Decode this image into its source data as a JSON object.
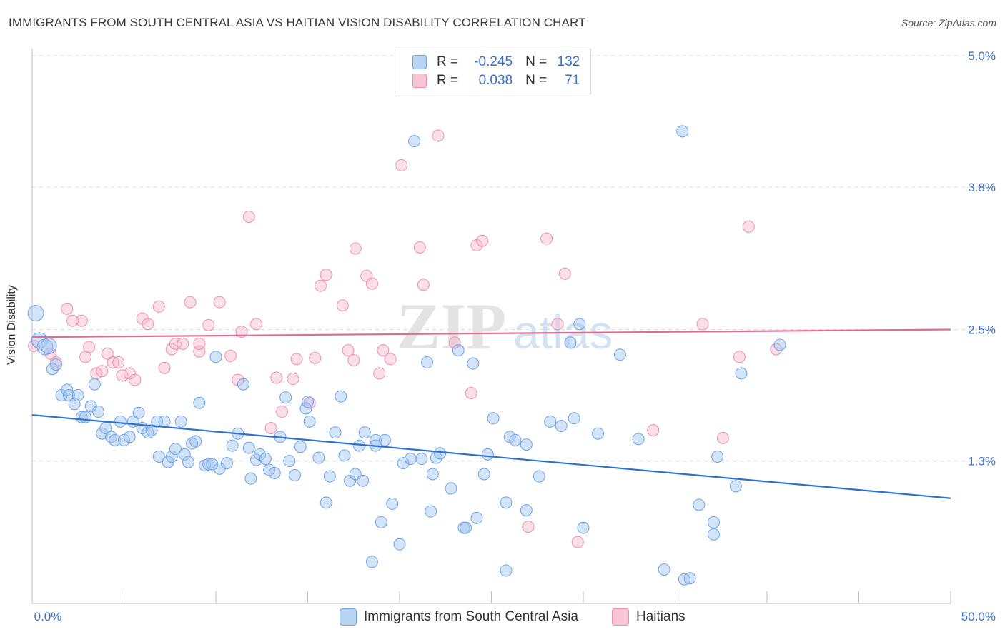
{
  "header": {
    "title": "IMMIGRANTS FROM SOUTH CENTRAL ASIA VS HAITIAN VISION DISABILITY CORRELATION CHART",
    "source": "Source: ZipAtlas.com"
  },
  "legend": {
    "r_label": "R =",
    "n_label": "N =",
    "series": [
      {
        "name": "Immigrants from South Central Asia",
        "r": "-0.245",
        "n": "132",
        "color": "#6ea3e6",
        "fill": "#b9d3f3",
        "line": "#2e6fd0"
      },
      {
        "name": "Haitians",
        "r": "0.038",
        "n": "71",
        "color": "#ee8fae",
        "fill": "#f8c6d5",
        "line": "#e36a92"
      }
    ]
  },
  "watermark": "ZIPatlas",
  "chart_data": {
    "type": "scatter",
    "xlabel": "",
    "ylabel": "Vision Disability",
    "xlim": [
      0,
      50
    ],
    "ylim": [
      0,
      5.0
    ],
    "x_tick_labels": [
      "0.0%",
      "50.0%"
    ],
    "y_ticks": [
      1.3,
      2.5,
      3.8,
      5.0
    ],
    "y_tick_labels": [
      "1.3%",
      "2.5%",
      "3.8%",
      "5.0%"
    ],
    "grid": "horizontal dashed",
    "legend_placement": "top-center and bottom",
    "series": [
      {
        "name": "Immigrants from South Central Asia",
        "trend": {
          "x": [
            0,
            50
          ],
          "y": [
            1.72,
            0.96
          ]
        },
        "points": [
          [
            0.2,
            2.65
          ],
          [
            0.4,
            2.4
          ],
          [
            0.7,
            2.34
          ],
          [
            0.9,
            2.35
          ],
          [
            1.1,
            2.14
          ],
          [
            1.3,
            2.18
          ],
          [
            1.6,
            1.9
          ],
          [
            1.9,
            1.95
          ],
          [
            2.0,
            1.9
          ],
          [
            2.3,
            1.82
          ],
          [
            2.5,
            1.9
          ],
          [
            2.7,
            1.7
          ],
          [
            2.9,
            1.7
          ],
          [
            3.2,
            1.8
          ],
          [
            3.4,
            2.0
          ],
          [
            3.6,
            1.75
          ],
          [
            3.8,
            1.55
          ],
          [
            4.0,
            1.6
          ],
          [
            4.3,
            1.52
          ],
          [
            4.5,
            1.49
          ],
          [
            4.8,
            1.66
          ],
          [
            5.0,
            1.49
          ],
          [
            5.3,
            1.52
          ],
          [
            5.5,
            1.66
          ],
          [
            5.8,
            1.74
          ],
          [
            6.0,
            1.6
          ],
          [
            6.3,
            1.56
          ],
          [
            6.5,
            1.58
          ],
          [
            6.8,
            1.66
          ],
          [
            6.9,
            1.34
          ],
          [
            7.2,
            1.66
          ],
          [
            7.4,
            1.29
          ],
          [
            7.6,
            1.34
          ],
          [
            7.8,
            1.41
          ],
          [
            8.1,
            1.66
          ],
          [
            8.3,
            1.36
          ],
          [
            8.5,
            1.29
          ],
          [
            8.7,
            1.46
          ],
          [
            8.9,
            1.48
          ],
          [
            9.1,
            1.83
          ],
          [
            9.4,
            1.26
          ],
          [
            9.6,
            1.27
          ],
          [
            9.8,
            1.27
          ],
          [
            10.0,
            2.25
          ],
          [
            10.2,
            1.23
          ],
          [
            10.6,
            1.28
          ],
          [
            10.9,
            1.44
          ],
          [
            11.2,
            1.55
          ],
          [
            11.5,
            2.0
          ],
          [
            11.8,
            1.42
          ],
          [
            11.9,
            1.14
          ],
          [
            12.2,
            1.31
          ],
          [
            12.4,
            1.36
          ],
          [
            12.7,
            1.32
          ],
          [
            12.9,
            1.22
          ],
          [
            13.2,
            1.19
          ],
          [
            13.5,
            1.52
          ],
          [
            13.8,
            1.88
          ],
          [
            14.0,
            1.3
          ],
          [
            14.3,
            1.17
          ],
          [
            14.6,
            1.43
          ],
          [
            14.9,
            1.78
          ],
          [
            15.0,
            1.84
          ],
          [
            15.1,
            1.66
          ],
          [
            15.6,
            1.33
          ],
          [
            16.0,
            0.92
          ],
          [
            16.2,
            1.16
          ],
          [
            16.5,
            1.56
          ],
          [
            16.8,
            1.89
          ],
          [
            17.0,
            1.35
          ],
          [
            17.3,
            1.12
          ],
          [
            17.6,
            1.18
          ],
          [
            17.8,
            1.44
          ],
          [
            18.0,
            1.12
          ],
          [
            18.1,
            1.56
          ],
          [
            18.7,
            1.49
          ],
          [
            18.7,
            1.44
          ],
          [
            18.5,
            0.38
          ],
          [
            19.0,
            0.74
          ],
          [
            19.2,
            1.49
          ],
          [
            19.6,
            0.91
          ],
          [
            20.0,
            0.54
          ],
          [
            20.2,
            1.28
          ],
          [
            20.6,
            1.32
          ],
          [
            20.8,
            4.22
          ],
          [
            21.2,
            1.32
          ],
          [
            21.5,
            2.2
          ],
          [
            21.8,
            1.18
          ],
          [
            21.7,
            0.84
          ],
          [
            22.0,
            1.33
          ],
          [
            22.2,
            1.37
          ],
          [
            22.8,
            1.05
          ],
          [
            23.2,
            2.31
          ],
          [
            23.5,
            0.69
          ],
          [
            23.6,
            0.69
          ],
          [
            24.0,
            2.19
          ],
          [
            24.2,
            0.78
          ],
          [
            24.6,
            1.18
          ],
          [
            24.8,
            1.36
          ],
          [
            25.1,
            1.69
          ],
          [
            25.8,
            0.92
          ],
          [
            25.8,
            0.3
          ],
          [
            26.0,
            1.52
          ],
          [
            26.3,
            1.49
          ],
          [
            26.9,
            0.85
          ],
          [
            26.9,
            1.45
          ],
          [
            27.6,
            1.16
          ],
          [
            28.2,
            1.66
          ],
          [
            28.8,
            1.62
          ],
          [
            29.3,
            2.38
          ],
          [
            29.5,
            1.69
          ],
          [
            29.8,
            2.55
          ],
          [
            30.0,
            0.69
          ],
          [
            30.8,
            1.55
          ],
          [
            32.0,
            2.27
          ],
          [
            33.0,
            1.5
          ],
          [
            35.4,
            4.31
          ],
          [
            34.4,
            0.31
          ],
          [
            35.5,
            0.22
          ],
          [
            35.8,
            0.23
          ],
          [
            36.3,
            0.9
          ],
          [
            37.1,
            0.74
          ],
          [
            37.1,
            0.63
          ],
          [
            37.3,
            1.34
          ],
          [
            38.3,
            1.07
          ],
          [
            38.6,
            2.1
          ],
          [
            40.7,
            2.36
          ]
        ]
      },
      {
        "name": "Haitians",
        "trend": {
          "x": [
            0,
            50
          ],
          "y": [
            2.43,
            2.5
          ]
        },
        "points": [
          [
            0.1,
            2.35
          ],
          [
            1.0,
            2.28
          ],
          [
            1.3,
            2.2
          ],
          [
            1.9,
            2.69
          ],
          [
            2.2,
            2.58
          ],
          [
            2.7,
            2.58
          ],
          [
            2.9,
            2.25
          ],
          [
            3.1,
            2.34
          ],
          [
            3.5,
            2.1
          ],
          [
            3.8,
            2.12
          ],
          [
            4.1,
            2.28
          ],
          [
            4.4,
            2.2
          ],
          [
            4.7,
            2.2
          ],
          [
            4.9,
            2.08
          ],
          [
            5.3,
            2.1
          ],
          [
            5.6,
            2.04
          ],
          [
            6.0,
            2.6
          ],
          [
            6.3,
            2.55
          ],
          [
            6.9,
            2.71
          ],
          [
            7.2,
            2.15
          ],
          [
            7.6,
            2.32
          ],
          [
            7.8,
            2.37
          ],
          [
            8.2,
            2.37
          ],
          [
            8.6,
            2.75
          ],
          [
            9.1,
            2.3
          ],
          [
            9.1,
            2.37
          ],
          [
            9.6,
            2.54
          ],
          [
            10.2,
            2.75
          ],
          [
            10.8,
            2.26
          ],
          [
            11.2,
            2.04
          ],
          [
            11.4,
            2.48
          ],
          [
            11.8,
            3.53
          ],
          [
            12.2,
            2.55
          ],
          [
            13.0,
            1.6
          ],
          [
            13.3,
            2.06
          ],
          [
            13.6,
            1.75
          ],
          [
            14.2,
            2.05
          ],
          [
            14.4,
            2.23
          ],
          [
            15.1,
            1.83
          ],
          [
            15.4,
            2.24
          ],
          [
            15.7,
            2.9
          ],
          [
            16.0,
            3.0
          ],
          [
            16.9,
            2.72
          ],
          [
            17.2,
            2.31
          ],
          [
            17.5,
            2.22
          ],
          [
            17.6,
            3.24
          ],
          [
            18.2,
            2.99
          ],
          [
            18.5,
            2.92
          ],
          [
            18.9,
            2.1
          ],
          [
            19.1,
            2.31
          ],
          [
            19.5,
            2.23
          ],
          [
            20.1,
            4.0
          ],
          [
            21.1,
            3.25
          ],
          [
            21.3,
            2.91
          ],
          [
            22.1,
            4.27
          ],
          [
            23.0,
            2.38
          ],
          [
            23.9,
            1.92
          ],
          [
            24.2,
            3.27
          ],
          [
            24.5,
            3.31
          ],
          [
            27.0,
            0.7
          ],
          [
            28.0,
            3.33
          ],
          [
            28.6,
            2.55
          ],
          [
            29.0,
            3.01
          ],
          [
            29.7,
            0.56
          ],
          [
            33.8,
            1.58
          ],
          [
            36.5,
            2.55
          ],
          [
            37.6,
            1.51
          ],
          [
            38.5,
            2.25
          ],
          [
            39.0,
            3.44
          ],
          [
            40.5,
            2.32
          ]
        ]
      }
    ]
  }
}
